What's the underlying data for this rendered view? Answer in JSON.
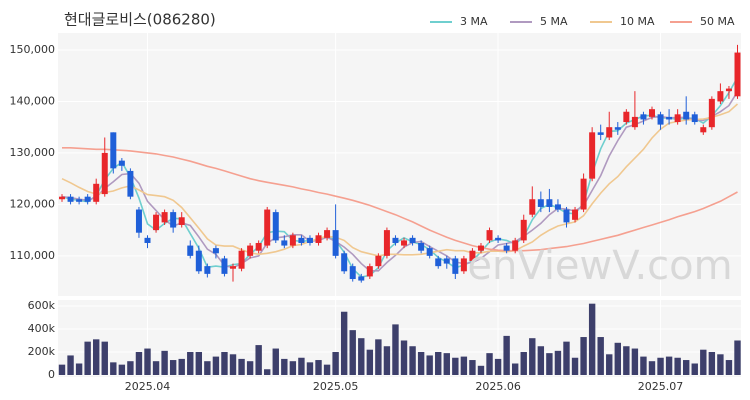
{
  "chart_data": {
    "type": "candlestick",
    "title": "현대글로비스(086280)",
    "watermark": "enViewV.com",
    "categories": [
      null,
      null,
      null,
      null,
      null,
      null,
      null,
      null,
      null,
      null,
      "2025.04",
      null,
      null,
      null,
      null,
      null,
      null,
      null,
      null,
      null,
      null,
      null,
      null,
      null,
      null,
      null,
      null,
      null,
      null,
      null,
      null,
      null,
      "2025.05",
      null,
      null,
      null,
      null,
      null,
      null,
      null,
      null,
      null,
      null,
      null,
      null,
      null,
      null,
      null,
      null,
      null,
      null,
      "2025.06",
      null,
      null,
      null,
      null,
      null,
      null,
      null,
      null,
      null,
      null,
      null,
      null,
      null,
      null,
      null,
      null,
      null,
      null,
      "2025.07",
      null,
      null,
      null,
      null,
      null,
      null,
      null,
      null,
      null
    ],
    "open": [
      121000,
      121500,
      121000,
      121500,
      120500,
      122000,
      134000,
      128500,
      126500,
      119000,
      113500,
      115000,
      116500,
      118500,
      116000,
      112000,
      111000,
      108000,
      111500,
      109500,
      107500,
      107500,
      110000,
      111000,
      112000,
      118500,
      113000,
      112000,
      113500,
      113500,
      112500,
      113500,
      115000,
      110500,
      108000,
      106000,
      106000,
      108000,
      110000,
      113500,
      112000,
      113500,
      112500,
      111500,
      109500,
      109500,
      109500,
      107000,
      109000,
      111000,
      113000,
      113500,
      112000,
      111000,
      113000,
      118000,
      121000,
      121000,
      120000,
      119000,
      117000,
      119000,
      125000,
      134000,
      133000,
      135000,
      136000,
      135000,
      137500,
      137000,
      137500,
      137000,
      136000,
      138000,
      137500,
      134000,
      135000,
      140000,
      142000,
      141000
    ],
    "high": [
      122000,
      122000,
      121500,
      122000,
      125000,
      133000,
      134000,
      129000,
      127000,
      119500,
      114000,
      118500,
      119000,
      119000,
      118500,
      113000,
      112000,
      108500,
      112000,
      110000,
      108500,
      111500,
      112500,
      113000,
      119500,
      119000,
      114000,
      114500,
      114000,
      114000,
      114500,
      115500,
      120000,
      111000,
      108500,
      106500,
      108500,
      110500,
      115500,
      114000,
      113500,
      114000,
      113000,
      112000,
      110000,
      110000,
      110000,
      110000,
      111500,
      112500,
      115500,
      114000,
      112500,
      113500,
      118000,
      123500,
      122500,
      123000,
      121000,
      119500,
      119500,
      126000,
      135000,
      135500,
      138000,
      136000,
      138500,
      142000,
      138000,
      139000,
      138000,
      138500,
      138500,
      141000,
      138000,
      135500,
      141000,
      143500,
      143000,
      151000
    ],
    "low": [
      120500,
      120000,
      120000,
      120000,
      120000,
      121500,
      126000,
      126500,
      121000,
      113500,
      111500,
      114500,
      116000,
      114500,
      115500,
      109500,
      106500,
      105800,
      109500,
      106000,
      105000,
      107000,
      109500,
      110500,
      111500,
      112500,
      111500,
      111500,
      112000,
      112000,
      112000,
      113000,
      109500,
      106500,
      105000,
      104800,
      105500,
      107500,
      109500,
      112000,
      111500,
      112000,
      110500,
      109500,
      107500,
      107500,
      105500,
      106500,
      108500,
      110500,
      112500,
      112500,
      110500,
      110500,
      112500,
      117500,
      118500,
      118500,
      118500,
      115500,
      116500,
      118500,
      124500,
      132500,
      132500,
      133500,
      135500,
      134500,
      135500,
      136500,
      134500,
      135500,
      135500,
      135500,
      135500,
      133500,
      134500,
      139500,
      140500,
      140500
    ],
    "close": [
      121500,
      120500,
      120500,
      120500,
      124000,
      130000,
      127000,
      127500,
      121500,
      114500,
      112500,
      118000,
      118500,
      115500,
      117500,
      110000,
      107000,
      106500,
      110500,
      106500,
      108000,
      111000,
      112000,
      112500,
      119000,
      113000,
      112000,
      114000,
      112500,
      112500,
      114000,
      115000,
      110000,
      107000,
      105500,
      105200,
      108000,
      110000,
      115000,
      112500,
      113000,
      112500,
      111000,
      110000,
      108000,
      108500,
      106500,
      109500,
      111000,
      112000,
      115000,
      113000,
      111000,
      113000,
      117000,
      121000,
      119500,
      119500,
      119000,
      116500,
      119000,
      125000,
      134000,
      133500,
      135000,
      134500,
      138000,
      137000,
      136500,
      138500,
      135500,
      136500,
      137500,
      136500,
      136000,
      135000,
      140500,
      142000,
      142500,
      149500
    ],
    "up_color": "#e8262a",
    "down_color": "#1f5fd8",
    "ylim": [
      102200,
      153300
    ],
    "yticks": [
      {
        "value": 110000,
        "label": "110,000"
      },
      {
        "value": 120000,
        "label": "120,000"
      },
      {
        "value": 130000,
        "label": "130,000"
      },
      {
        "value": 140000,
        "label": "140,000"
      },
      {
        "value": 150000,
        "label": "150,000"
      }
    ],
    "grid": true,
    "series": [
      {
        "name": "3 MA",
        "color": "#6fcfcf",
        "values": [
          121500,
          121000,
          120800,
          120500,
          121700,
          124800,
          127000,
          128200,
          125300,
          121200,
          116200,
          115000,
          116300,
          117300,
          117200,
          114300,
          111500,
          107800,
          108000,
          107800,
          108300,
          108500,
          110300,
          111800,
          114500,
          114800,
          114700,
          113000,
          112800,
          113000,
          113000,
          113800,
          113000,
          110700,
          107500,
          105900,
          106200,
          107700,
          111000,
          112500,
          113500,
          112700,
          112200,
          111200,
          109700,
          108800,
          107700,
          108200,
          109000,
          110800,
          112700,
          113300,
          113000,
          112300,
          113700,
          117000,
          119200,
          120000,
          119300,
          118300,
          118200,
          120200,
          126000,
          130800,
          134200,
          134300,
          135800,
          136500,
          137200,
          137300,
          136800,
          136800,
          136500,
          136800,
          136700,
          135800,
          137200,
          139200,
          141700,
          144700
        ]
      },
      {
        "name": "5 MA",
        "color": "#b09ac0",
        "values": [
          121500,
          121300,
          121000,
          120800,
          121400,
          123100,
          124400,
          125800,
          126000,
          124100,
          120600,
          118800,
          117000,
          115800,
          116400,
          115900,
          113700,
          111300,
          110300,
          108100,
          107700,
          108500,
          109600,
          110000,
          112500,
          113500,
          113700,
          114100,
          114100,
          112800,
          113000,
          113600,
          112800,
          111700,
          110300,
          108500,
          107100,
          107100,
          108700,
          110100,
          111700,
          112600,
          112800,
          111800,
          110900,
          110000,
          108800,
          108500,
          108700,
          109500,
          110800,
          112100,
          112400,
          112800,
          113800,
          115000,
          116300,
          118000,
          119200,
          119100,
          118700,
          119800,
          122700,
          125600,
          129400,
          132400,
          135000,
          135500,
          136200,
          136900,
          137100,
          136800,
          136900,
          136900,
          136400,
          136300,
          137100,
          138000,
          139200,
          141900
        ]
      },
      {
        "name": "10 MA",
        "color": "#f0c890",
        "values": [
          125000,
          124200,
          123300,
          122500,
          122000,
          122300,
          122600,
          123200,
          123600,
          122800,
          121900,
          121700,
          121500,
          120800,
          119400,
          117400,
          115400,
          113300,
          112100,
          111900,
          111900,
          111200,
          110600,
          110300,
          110500,
          110800,
          111300,
          112000,
          112200,
          112800,
          113400,
          113800,
          113600,
          113000,
          111600,
          110800,
          110400,
          110000,
          110300,
          110300,
          110200,
          110200,
          110300,
          110600,
          110900,
          111200,
          111000,
          111000,
          110600,
          110600,
          110900,
          110900,
          110800,
          111000,
          111900,
          112700,
          114000,
          115000,
          115800,
          116200,
          116600,
          117800,
          120100,
          122200,
          124000,
          125400,
          127300,
          129000,
          130700,
          132900,
          134600,
          135800,
          136100,
          136400,
          136500,
          136600,
          136900,
          137400,
          138000,
          139500
        ]
      },
      {
        "name": "50 MA",
        "color": "#f5a090",
        "values": [
          131000,
          131000,
          130900,
          130800,
          130700,
          130700,
          130600,
          130500,
          130400,
          130200,
          130000,
          129800,
          129500,
          129200,
          128800,
          128400,
          127900,
          127400,
          127000,
          126500,
          126000,
          125500,
          125000,
          124600,
          124300,
          124000,
          123700,
          123400,
          123000,
          122700,
          122300,
          122000,
          121600,
          121200,
          120800,
          120300,
          119800,
          119200,
          118600,
          118000,
          117300,
          116600,
          115800,
          115000,
          114300,
          113600,
          113000,
          112500,
          112000,
          111600,
          111300,
          111100,
          111000,
          111000,
          111000,
          111100,
          111200,
          111400,
          111600,
          111800,
          112100,
          112400,
          112800,
          113200,
          113600,
          114000,
          114500,
          115000,
          115500,
          116000,
          116500,
          117000,
          117600,
          118100,
          118600,
          119200,
          119900,
          120600,
          121500,
          122400
        ]
      }
    ],
    "volume": {
      "color": "#3d3f6b",
      "ylim": [
        0,
        652000
      ],
      "yticks": [
        0,
        {
          "value": 200000,
          "label": "200k"
        },
        {
          "value": 400000,
          "label": "400k"
        },
        {
          "value": 600000,
          "label": "600k"
        }
      ],
      "values": [
        90000,
        170000,
        100000,
        290000,
        310000,
        290000,
        110000,
        90000,
        120000,
        200000,
        230000,
        120000,
        210000,
        130000,
        140000,
        200000,
        200000,
        120000,
        160000,
        200000,
        180000,
        140000,
        120000,
        260000,
        50000,
        230000,
        140000,
        120000,
        150000,
        110000,
        130000,
        90000,
        200000,
        550000,
        390000,
        320000,
        220000,
        310000,
        250000,
        440000,
        300000,
        250000,
        200000,
        170000,
        200000,
        190000,
        150000,
        160000,
        130000,
        80000,
        190000,
        140000,
        340000,
        100000,
        200000,
        320000,
        250000,
        190000,
        210000,
        290000,
        150000,
        330000,
        620000,
        330000,
        180000,
        280000,
        250000,
        230000,
        160000,
        120000,
        150000,
        160000,
        150000,
        130000,
        100000,
        220000,
        200000,
        180000,
        130000,
        300000
      ]
    }
  }
}
